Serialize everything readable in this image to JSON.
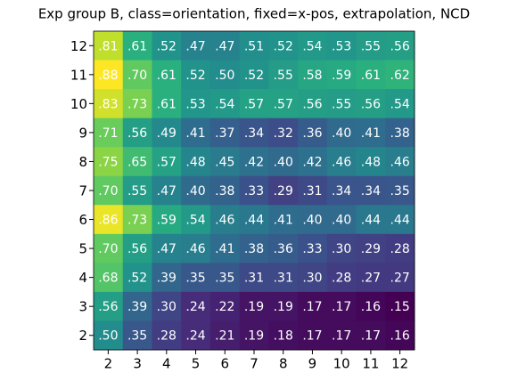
{
  "chart_data": {
    "type": "heatmap",
    "title": "Exp group B, class=orientation, fixed=x-pos, extrapolation, NCD",
    "x": [
      2,
      3,
      4,
      5,
      6,
      7,
      8,
      9,
      10,
      11,
      12
    ],
    "y": [
      12,
      11,
      10,
      9,
      8,
      7,
      6,
      5,
      4,
      3,
      2
    ],
    "colormap": "viridis",
    "values": [
      [
        0.81,
        0.61,
        0.52,
        0.47,
        0.47,
        0.51,
        0.52,
        0.54,
        0.53,
        0.55,
        0.56
      ],
      [
        0.88,
        0.7,
        0.61,
        0.52,
        0.5,
        0.52,
        0.55,
        0.58,
        0.59,
        0.61,
        0.62
      ],
      [
        0.83,
        0.73,
        0.61,
        0.53,
        0.54,
        0.57,
        0.57,
        0.56,
        0.55,
        0.56,
        0.54
      ],
      [
        0.71,
        0.56,
        0.49,
        0.41,
        0.37,
        0.34,
        0.32,
        0.36,
        0.4,
        0.41,
        0.38
      ],
      [
        0.75,
        0.65,
        0.57,
        0.48,
        0.45,
        0.42,
        0.4,
        0.42,
        0.46,
        0.48,
        0.46
      ],
      [
        0.7,
        0.55,
        0.47,
        0.4,
        0.38,
        0.33,
        0.29,
        0.31,
        0.34,
        0.34,
        0.35
      ],
      [
        0.86,
        0.73,
        0.59,
        0.54,
        0.46,
        0.44,
        0.41,
        0.4,
        0.4,
        0.44,
        0.44
      ],
      [
        0.7,
        0.56,
        0.47,
        0.46,
        0.41,
        0.38,
        0.36,
        0.33,
        0.3,
        0.29,
        0.28
      ],
      [
        0.68,
        0.52,
        0.39,
        0.35,
        0.35,
        0.31,
        0.31,
        0.3,
        0.28,
        0.27,
        0.27
      ],
      [
        0.56,
        0.39,
        0.3,
        0.24,
        0.22,
        0.19,
        0.19,
        0.17,
        0.17,
        0.16,
        0.15
      ],
      [
        0.5,
        0.35,
        0.28,
        0.24,
        0.21,
        0.19,
        0.18,
        0.17,
        0.17,
        0.17,
        0.16
      ]
    ],
    "value_labels": [
      [
        ".81",
        ".61",
        ".52",
        ".47",
        ".47",
        ".51",
        ".52",
        ".54",
        ".53",
        ".55",
        ".56"
      ],
      [
        ".88",
        ".70",
        ".61",
        ".52",
        ".50",
        ".52",
        ".55",
        ".58",
        ".59",
        ".61",
        ".62"
      ],
      [
        ".83",
        ".73",
        ".61",
        ".53",
        ".54",
        ".57",
        ".57",
        ".56",
        ".55",
        ".56",
        ".54"
      ],
      [
        ".71",
        ".56",
        ".49",
        ".41",
        ".37",
        ".34",
        ".32",
        ".36",
        ".40",
        ".41",
        ".38"
      ],
      [
        ".75",
        ".65",
        ".57",
        ".48",
        ".45",
        ".42",
        ".40",
        ".42",
        ".46",
        ".48",
        ".46"
      ],
      [
        ".70",
        ".55",
        ".47",
        ".40",
        ".38",
        ".33",
        ".29",
        ".31",
        ".34",
        ".34",
        ".35"
      ],
      [
        ".86",
        ".73",
        ".59",
        ".54",
        ".46",
        ".44",
        ".41",
        ".40",
        ".40",
        ".44",
        ".44"
      ],
      [
        ".70",
        ".56",
        ".47",
        ".46",
        ".41",
        ".38",
        ".36",
        ".33",
        ".30",
        ".29",
        ".28"
      ],
      [
        ".68",
        ".52",
        ".39",
        ".35",
        ".35",
        ".31",
        ".31",
        ".30",
        ".28",
        ".27",
        ".27"
      ],
      [
        ".56",
        ".39",
        ".30",
        ".24",
        ".22",
        ".19",
        ".19",
        ".17",
        ".17",
        ".16",
        ".15"
      ],
      [
        ".50",
        ".35",
        ".28",
        ".24",
        ".21",
        ".19",
        ".18",
        ".17",
        ".17",
        ".17",
        ".16"
      ]
    ]
  }
}
